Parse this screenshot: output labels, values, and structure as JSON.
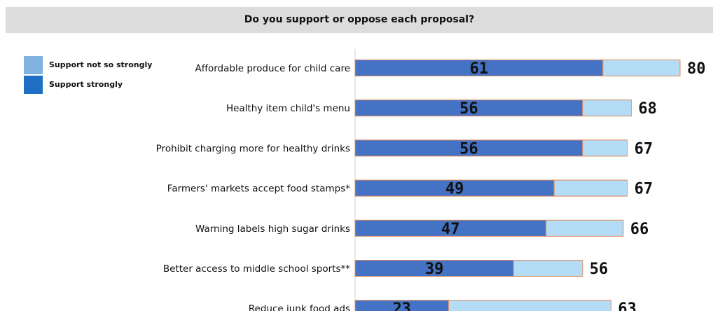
{
  "chart_data": {
    "type": "bar",
    "stacked": true,
    "orientation": "horizontal",
    "title": "Do you support or oppose each proposal?",
    "categories": [
      "Affordable produce for child care",
      "Healthy item child's menu",
      "Prohibit charging more for healthy drinks",
      "Farmers' markets accept food stamps*",
      "Warning labels high sugar drinks",
      "Better access to middle school sports**",
      "Reduce junk food ads"
    ],
    "series": [
      {
        "name": "Support strongly",
        "values": [
          61,
          56,
          56,
          49,
          47,
          39,
          23
        ],
        "color": "#4472c4"
      },
      {
        "name": "Support not so strongly",
        "values": [
          19,
          12,
          11,
          18,
          19,
          17,
          40
        ],
        "color": "#b4dcf7"
      }
    ],
    "totals": [
      80,
      68,
      67,
      67,
      66,
      56,
      63
    ],
    "legend": {
      "position": "top-left",
      "items": [
        {
          "label": "Support not so strongly",
          "color": "#7fb2de"
        },
        {
          "label": "Support strongly",
          "color": "#1f6fc4"
        }
      ]
    },
    "bar_outline_color": "#e08a5a"
  }
}
